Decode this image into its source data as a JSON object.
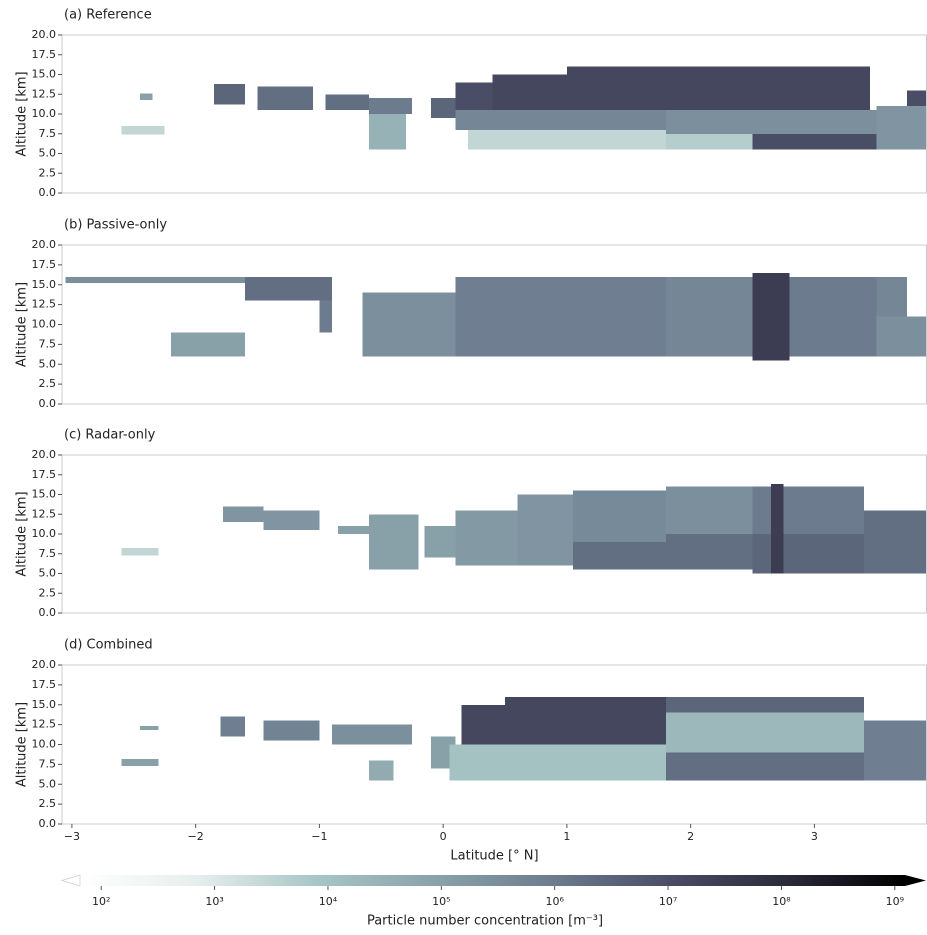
{
  "chart_data": [
    {
      "type": "heatmap",
      "title": "(a) Reference",
      "ylabel": "Altitude [km]",
      "xlim": [
        -3.08,
        3.91
      ],
      "ylim": [
        0,
        20
      ],
      "yticks": [
        {
          "value": 0,
          "label": "0.0"
        },
        {
          "value": 2.5,
          "label": "2.5"
        },
        {
          "value": 5,
          "label": "5.0"
        },
        {
          "value": 7.5,
          "label": "7.5"
        },
        {
          "value": 10,
          "label": "10.0"
        },
        {
          "value": 12.5,
          "label": "12.5"
        },
        {
          "value": 15,
          "label": "15.0"
        },
        {
          "value": 17.5,
          "label": "17.5"
        },
        {
          "value": 20,
          "label": "20.0"
        }
      ],
      "cells": [
        {
          "lat": [
            -2.6,
            -2.25
          ],
          "alt": [
            7.4,
            8.5
          ],
          "n": 3000
        },
        {
          "lat": [
            -2.45,
            -2.35
          ],
          "alt": [
            11.8,
            12.6
          ],
          "n": 100000
        },
        {
          "lat": [
            -1.85,
            -1.6
          ],
          "alt": [
            11.2,
            13.8
          ],
          "n": 3000000
        },
        {
          "lat": [
            -1.5,
            -1.05
          ],
          "alt": [
            10.5,
            13.5
          ],
          "n": 2000000
        },
        {
          "lat": [
            -0.95,
            -0.6
          ],
          "alt": [
            10.5,
            12.5
          ],
          "n": 2000000
        },
        {
          "lat": [
            -0.6,
            -0.25
          ],
          "alt": [
            10,
            12
          ],
          "n": 1000000
        },
        {
          "lat": [
            -0.6,
            -0.3
          ],
          "alt": [
            5.5,
            10
          ],
          "n": 30000
        },
        {
          "lat": [
            -0.1,
            0.1
          ],
          "alt": [
            9.5,
            12
          ],
          "n": 3000000
        },
        {
          "lat": [
            0.1,
            0.4
          ],
          "alt": [
            10,
            14
          ],
          "n": 10000000
        },
        {
          "lat": [
            0.4,
            1.0
          ],
          "alt": [
            10.5,
            15
          ],
          "n": 15000000
        },
        {
          "lat": [
            1.0,
            3.45
          ],
          "alt": [
            10.5,
            16
          ],
          "n": 15000000
        },
        {
          "lat": [
            0.1,
            1.8
          ],
          "alt": [
            8,
            10.5
          ],
          "n": 500000
        },
        {
          "lat": [
            0.2,
            1.8
          ],
          "alt": [
            5.5,
            8
          ],
          "n": 3000
        },
        {
          "lat": [
            1.8,
            3.5
          ],
          "alt": [
            7.5,
            10.5
          ],
          "n": 300000
        },
        {
          "lat": [
            1.8,
            2.5
          ],
          "alt": [
            5.5,
            7.5
          ],
          "n": 5000
        },
        {
          "lat": [
            2.5,
            3.5
          ],
          "alt": [
            5.5,
            7.5
          ],
          "n": 10000000
        },
        {
          "lat": [
            3.5,
            3.91
          ],
          "alt": [
            5.5,
            11
          ],
          "n": 200000
        },
        {
          "lat": [
            3.75,
            3.91
          ],
          "alt": [
            11,
            13
          ],
          "n": 10000000
        }
      ]
    },
    {
      "type": "heatmap",
      "title": "(b) Passive-only",
      "ylabel": "Altitude [km]",
      "xlim": [
        -3.08,
        3.91
      ],
      "ylim": [
        0,
        20
      ],
      "yticks": [
        {
          "value": 0,
          "label": "0.0"
        },
        {
          "value": 2.5,
          "label": "2.5"
        },
        {
          "value": 5,
          "label": "5.0"
        },
        {
          "value": 7.5,
          "label": "7.5"
        },
        {
          "value": 10,
          "label": "10.0"
        },
        {
          "value": 12.5,
          "label": "12.5"
        },
        {
          "value": 15,
          "label": "15.0"
        },
        {
          "value": 17.5,
          "label": "17.5"
        },
        {
          "value": 20,
          "label": "20.0"
        }
      ],
      "cells": [
        {
          "lat": [
            -3.05,
            -1.6
          ],
          "alt": [
            15.2,
            16
          ],
          "n": 300000
        },
        {
          "lat": [
            -2.2,
            -1.6
          ],
          "alt": [
            6,
            9
          ],
          "n": 100000
        },
        {
          "lat": [
            -1.6,
            -0.9
          ],
          "alt": [
            13,
            16
          ],
          "n": 2000000
        },
        {
          "lat": [
            -1.0,
            -0.9
          ],
          "alt": [
            9,
            13
          ],
          "n": 1000000
        },
        {
          "lat": [
            -0.65,
            0.1
          ],
          "alt": [
            6,
            14
          ],
          "n": 300000
        },
        {
          "lat": [
            0.1,
            1.8
          ],
          "alt": [
            6,
            16
          ],
          "n": 800000
        },
        {
          "lat": [
            1.8,
            2.5
          ],
          "alt": [
            6,
            16
          ],
          "n": 500000
        },
        {
          "lat": [
            2.5,
            2.8
          ],
          "alt": [
            5.5,
            16.5
          ],
          "n": 30000000
        },
        {
          "lat": [
            2.8,
            3.5
          ],
          "alt": [
            6,
            16
          ],
          "n": 1000000
        },
        {
          "lat": [
            3.5,
            3.91
          ],
          "alt": [
            6,
            11
          ],
          "n": 300000
        },
        {
          "lat": [
            3.5,
            3.75
          ],
          "alt": [
            11,
            16
          ],
          "n": 500000
        }
      ]
    },
    {
      "type": "heatmap",
      "title": "(c) Radar-only",
      "ylabel": "Altitude [km]",
      "xlim": [
        -3.08,
        3.91
      ],
      "ylim": [
        0,
        20
      ],
      "yticks": [
        {
          "value": 0,
          "label": "0.0"
        },
        {
          "value": 2.5,
          "label": "2.5"
        },
        {
          "value": 5,
          "label": "5.0"
        },
        {
          "value": 7.5,
          "label": "7.5"
        },
        {
          "value": 10,
          "label": "10.0"
        },
        {
          "value": 12.5,
          "label": "12.5"
        },
        {
          "value": 15,
          "label": "15.0"
        },
        {
          "value": 17.5,
          "label": "17.5"
        },
        {
          "value": 20,
          "label": "20.0"
        }
      ],
      "cells": [
        {
          "lat": [
            -2.6,
            -2.3
          ],
          "alt": [
            7.3,
            8.2
          ],
          "n": 3000
        },
        {
          "lat": [
            -1.78,
            -1.45
          ],
          "alt": [
            11.5,
            13.5
          ],
          "n": 200000
        },
        {
          "lat": [
            -1.45,
            -1.0
          ],
          "alt": [
            10.5,
            13
          ],
          "n": 200000
        },
        {
          "lat": [
            -0.85,
            -0.6
          ],
          "alt": [
            10,
            11
          ],
          "n": 100000
        },
        {
          "lat": [
            -0.6,
            -0.2
          ],
          "alt": [
            5.5,
            12.5
          ],
          "n": 100000
        },
        {
          "lat": [
            -0.15,
            0.1
          ],
          "alt": [
            7,
            11
          ],
          "n": 100000
        },
        {
          "lat": [
            0.1,
            0.6
          ],
          "alt": [
            6,
            13
          ],
          "n": 150000
        },
        {
          "lat": [
            0.6,
            1.05
          ],
          "alt": [
            6,
            15
          ],
          "n": 200000
        },
        {
          "lat": [
            1.05,
            1.8
          ],
          "alt": [
            5.5,
            9
          ],
          "n": 2000000
        },
        {
          "lat": [
            1.05,
            1.8
          ],
          "alt": [
            9,
            15.5
          ],
          "n": 400000
        },
        {
          "lat": [
            1.8,
            2.5
          ],
          "alt": [
            5.5,
            10
          ],
          "n": 2000000
        },
        {
          "lat": [
            1.8,
            2.5
          ],
          "alt": [
            10,
            16
          ],
          "n": 300000
        },
        {
          "lat": [
            2.5,
            3.4
          ],
          "alt": [
            5,
            10
          ],
          "n": 3000000
        },
        {
          "lat": [
            2.5,
            3.4
          ],
          "alt": [
            10,
            16
          ],
          "n": 1000000
        },
        {
          "lat": [
            2.65,
            2.75
          ],
          "alt": [
            5,
            16.3
          ],
          "n": 30000000
        },
        {
          "lat": [
            3.4,
            3.91
          ],
          "alt": [
            5,
            13
          ],
          "n": 2000000
        }
      ]
    },
    {
      "type": "heatmap",
      "title": "(d) Combined",
      "ylabel": "Altitude [km]",
      "xlabel": "Latitude [° N]",
      "xlim": [
        -3.08,
        3.91
      ],
      "ylim": [
        0,
        20
      ],
      "yticks": [
        {
          "value": 0,
          "label": "0.0"
        },
        {
          "value": 2.5,
          "label": "2.5"
        },
        {
          "value": 5,
          "label": "5.0"
        },
        {
          "value": 7.5,
          "label": "7.5"
        },
        {
          "value": 10,
          "label": "10.0"
        },
        {
          "value": 12.5,
          "label": "12.5"
        },
        {
          "value": 15,
          "label": "15.0"
        },
        {
          "value": 17.5,
          "label": "17.5"
        },
        {
          "value": 20,
          "label": "20.0"
        }
      ],
      "xticks": [
        {
          "value": -3,
          "label": "−3"
        },
        {
          "value": -2,
          "label": "−2"
        },
        {
          "value": -1,
          "label": "−1"
        },
        0,
        1,
        2,
        3
      ],
      "cells": [
        {
          "lat": [
            -2.6,
            -2.3
          ],
          "alt": [
            7.3,
            8.2
          ],
          "n": 100000
        },
        {
          "lat": [
            -2.45,
            -2.3
          ],
          "alt": [
            11.8,
            12.3
          ],
          "n": 100000
        },
        {
          "lat": [
            -1.8,
            -1.6
          ],
          "alt": [
            11,
            13.5
          ],
          "n": 800000
        },
        {
          "lat": [
            -1.45,
            -1.0
          ],
          "alt": [
            10.5,
            13
          ],
          "n": 600000
        },
        {
          "lat": [
            -0.9,
            -0.25
          ],
          "alt": [
            10,
            12.5
          ],
          "n": 300000
        },
        {
          "lat": [
            -0.6,
            -0.4
          ],
          "alt": [
            5.5,
            8
          ],
          "n": 50000
        },
        {
          "lat": [
            -0.1,
            0.1
          ],
          "alt": [
            7,
            11
          ],
          "n": 100000
        },
        {
          "lat": [
            0.15,
            0.5
          ],
          "alt": [
            10,
            15
          ],
          "n": 15000000
        },
        {
          "lat": [
            0.5,
            1.8
          ],
          "alt": [
            10,
            16
          ],
          "n": 15000000
        },
        {
          "lat": [
            0.05,
            1.8
          ],
          "alt": [
            5.5,
            10
          ],
          "n": 10000
        },
        {
          "lat": [
            1.8,
            3.4
          ],
          "alt": [
            14,
            16
          ],
          "n": 3000000
        },
        {
          "lat": [
            1.8,
            3.4
          ],
          "alt": [
            9,
            14
          ],
          "n": 20000
        },
        {
          "lat": [
            1.8,
            3.4
          ],
          "alt": [
            5.5,
            9
          ],
          "n": 2000000
        },
        {
          "lat": [
            3.4,
            3.91
          ],
          "alt": [
            5.5,
            13
          ],
          "n": 800000
        }
      ]
    }
  ],
  "colorbar": {
    "label": "Particle number concentration [m⁻³]",
    "scale": "log",
    "clim": [
      65,
      1230000000
    ],
    "extend": "both",
    "colors": [
      "#ffffff",
      "#e6eeee",
      "#a8c6c5",
      "#8aa3ab",
      "#6d7d8f",
      "#4a4d66",
      "#2a2a3a",
      "#000000"
    ],
    "ticks": [
      {
        "value": 100,
        "label": "10²"
      },
      {
        "value": 1000,
        "label": "10³"
      },
      {
        "value": 10000,
        "label": "10⁴"
      },
      {
        "value": 100000,
        "label": "10⁵"
      },
      {
        "value": 1000000,
        "label": "10⁶"
      },
      {
        "value": 10000000,
        "label": "10⁷"
      },
      {
        "value": 100000000,
        "label": "10⁸"
      },
      {
        "value": 1000000000,
        "label": "10⁹"
      }
    ]
  }
}
